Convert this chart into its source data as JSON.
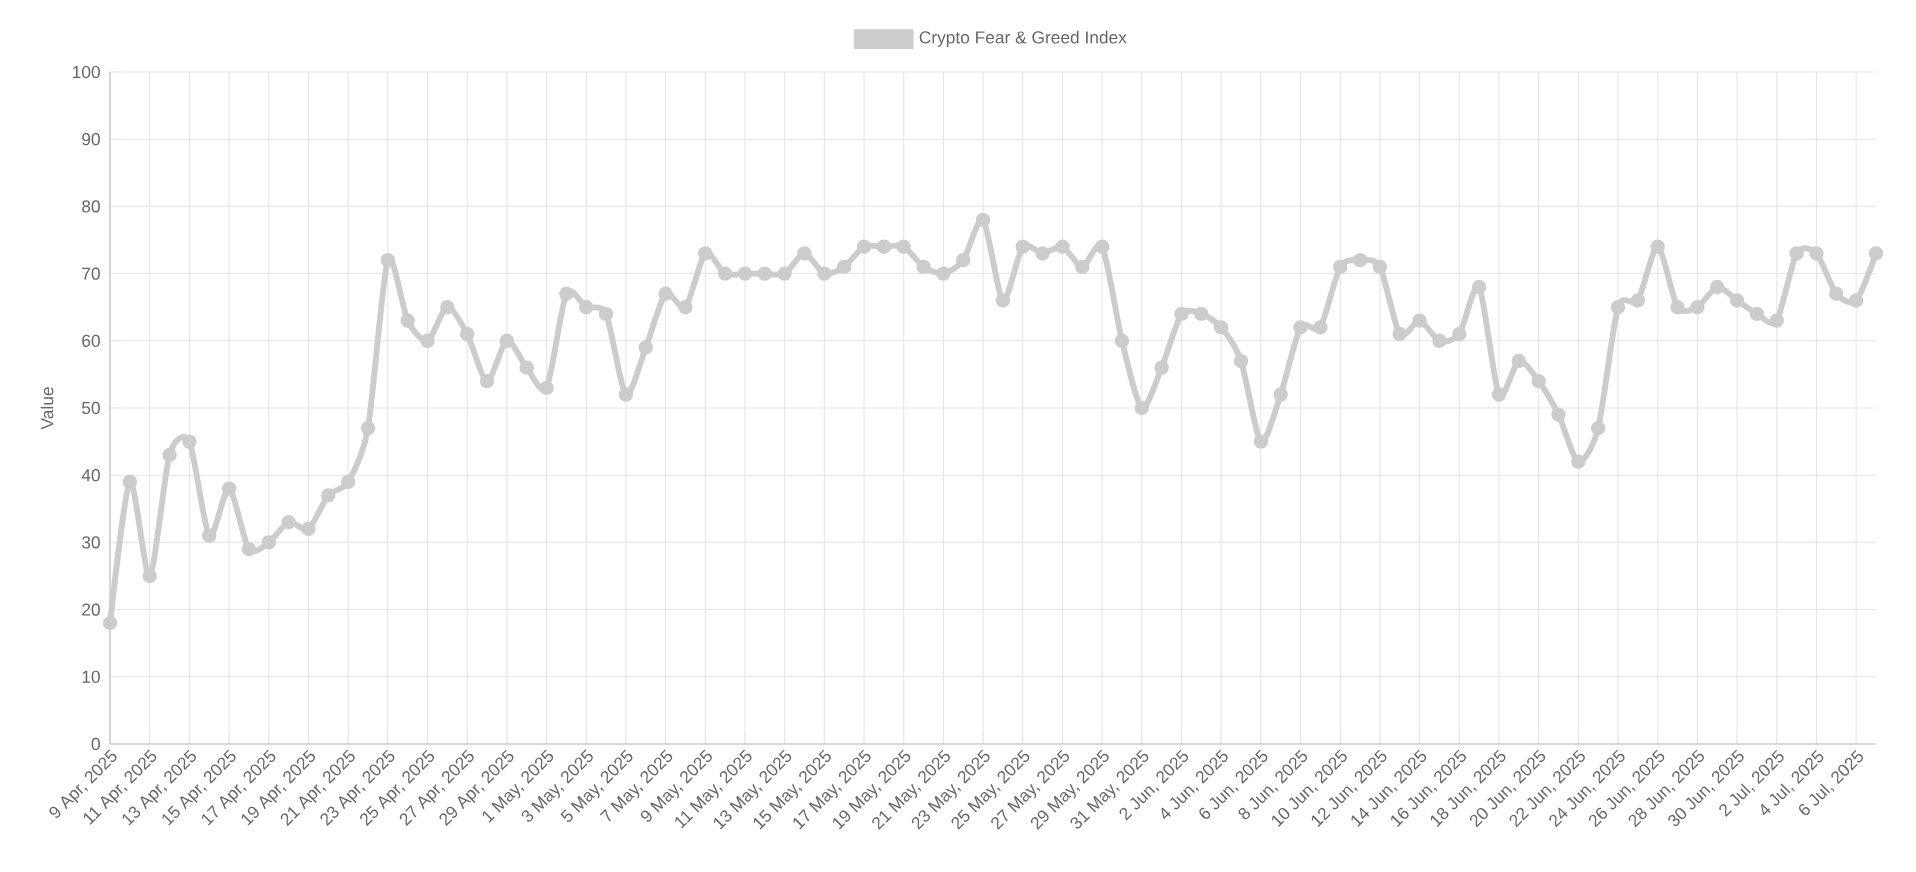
{
  "chart_data": {
    "type": "line",
    "categories": [
      "9 Apr, 2025",
      null,
      "11 Apr, 2025",
      null,
      "13 Apr, 2025",
      null,
      "15 Apr, 2025",
      null,
      "17 Apr, 2025",
      null,
      "19 Apr, 2025",
      null,
      "21 Apr, 2025",
      null,
      "23 Apr, 2025",
      null,
      "25 Apr, 2025",
      null,
      "27 Apr, 2025",
      null,
      "29 Apr, 2025",
      null,
      "1 May, 2025",
      null,
      "3 May, 2025",
      null,
      "5 May, 2025",
      null,
      "7 May, 2025",
      null,
      "9 May, 2025",
      null,
      "11 May, 2025",
      null,
      "13 May, 2025",
      null,
      "15 May, 2025",
      null,
      "17 May, 2025",
      null,
      "19 May, 2025",
      null,
      "21 May, 2025",
      null,
      "23 May, 2025",
      null,
      "25 May, 2025",
      null,
      "27 May, 2025",
      null,
      "29 May, 2025",
      null,
      "31 May, 2025",
      null,
      "2 Jun, 2025",
      null,
      "4 Jun, 2025",
      null,
      "6 Jun, 2025",
      null,
      "8 Jun, 2025",
      null,
      "10 Jun, 2025",
      null,
      "12 Jun, 2025",
      null,
      "14 Jun, 2025",
      null,
      "16 Jun, 2025",
      null,
      "18 Jun, 2025",
      null,
      "20 Jun, 2025",
      null,
      "22 Jun, 2025",
      null,
      "24 Jun, 2025",
      null,
      "26 Jun, 2025",
      null,
      "28 Jun, 2025",
      null,
      "30 Jun, 2025",
      null,
      "2 Jul, 2025",
      null,
      "4 Jul, 2025",
      null,
      "6 Jul, 2025",
      null
    ],
    "series": [
      {
        "name": "Crypto Fear & Greed Index",
        "color": "#cccccc",
        "values": [
          18,
          39,
          25,
          43,
          45,
          31,
          38,
          29,
          30,
          33,
          32,
          37,
          39,
          47,
          72,
          63,
          60,
          65,
          61,
          54,
          60,
          56,
          53,
          67,
          65,
          64,
          52,
          59,
          67,
          65,
          73,
          70,
          70,
          70,
          70,
          73,
          70,
          71,
          74,
          74,
          74,
          71,
          70,
          72,
          78,
          66,
          74,
          73,
          74,
          71,
          74,
          60,
          50,
          56,
          64,
          64,
          62,
          57,
          45,
          52,
          62,
          62,
          71,
          72,
          71,
          61,
          63,
          60,
          61,
          68,
          52,
          57,
          54,
          49,
          42,
          47,
          65,
          66,
          74,
          65,
          65,
          68,
          66,
          64,
          63,
          73,
          73,
          67,
          66,
          73
        ]
      }
    ],
    "ylabel": "Value",
    "ylim": [
      0,
      100
    ],
    "yticks": [
      0,
      10,
      20,
      30,
      40,
      50,
      60,
      70,
      80,
      90,
      100
    ],
    "grid": true,
    "legend": "top",
    "marker": "circle",
    "line_style": "solid"
  }
}
